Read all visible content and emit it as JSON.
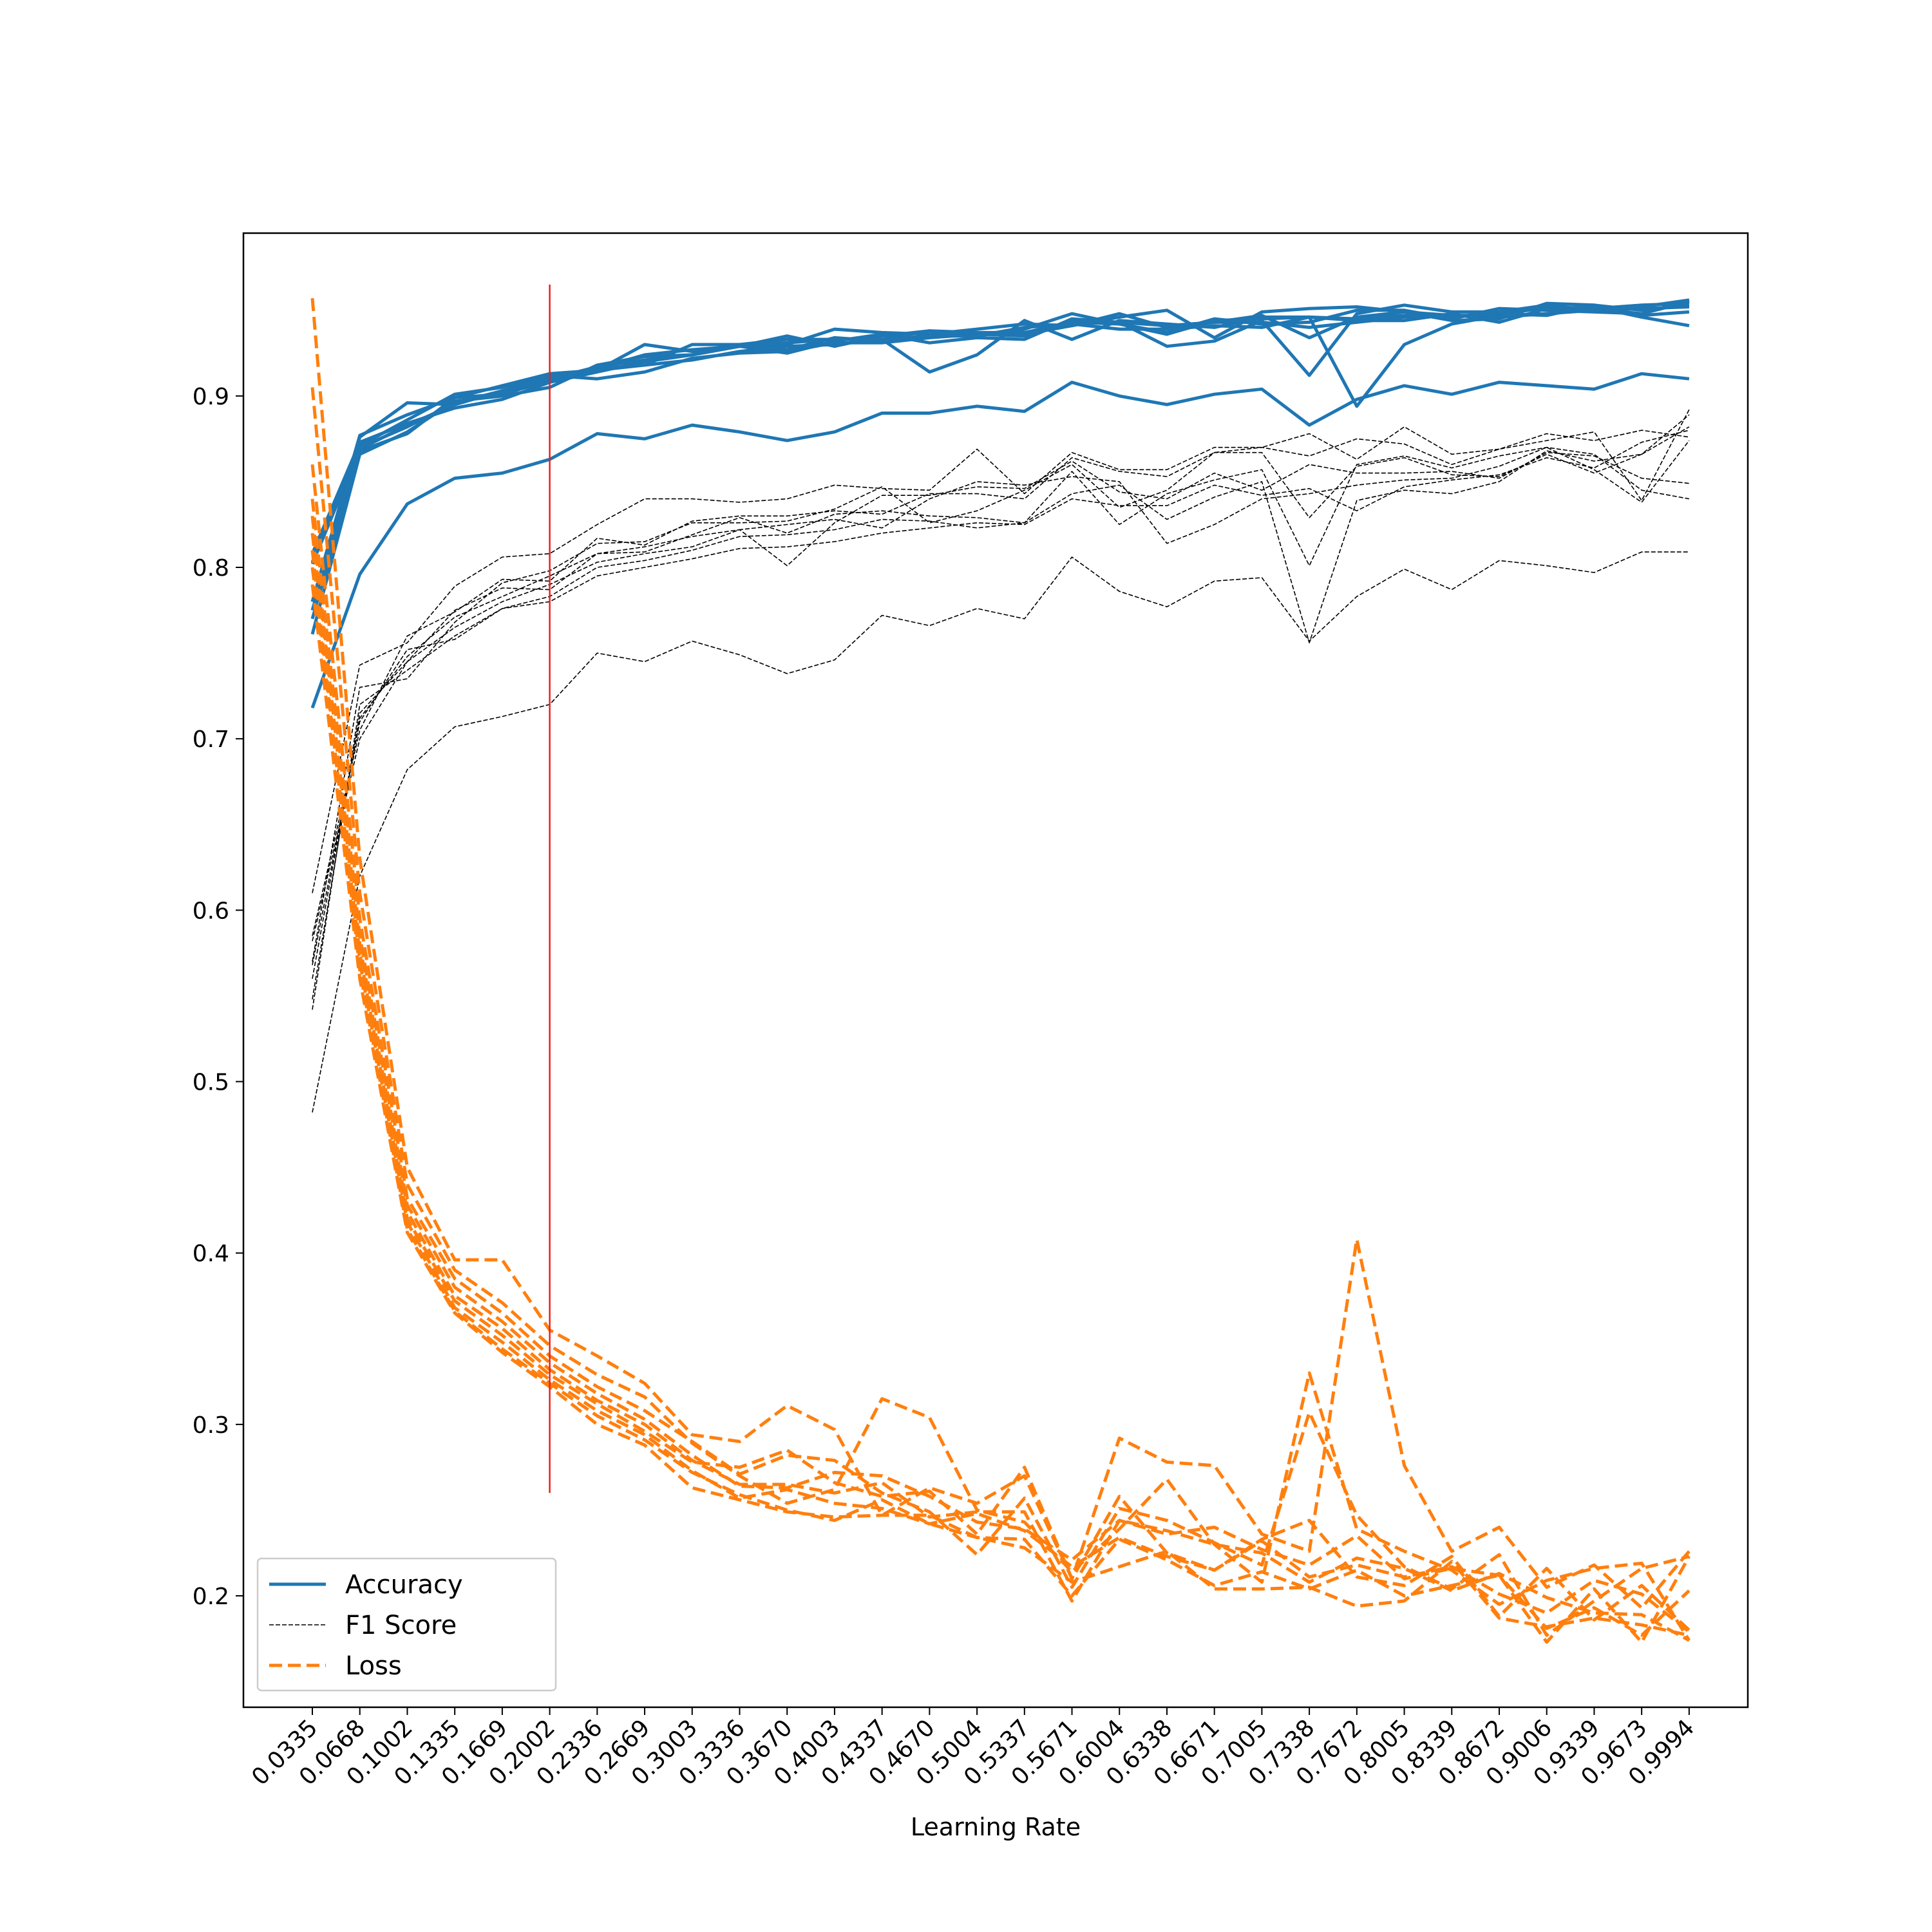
{
  "chart_data": {
    "type": "line",
    "title": "",
    "xlabel": "Learning Rate",
    "ylabel": "",
    "x": [
      0.0335,
      0.0668,
      0.1002,
      0.1335,
      0.1669,
      0.2002,
      0.2336,
      0.2669,
      0.3003,
      0.3336,
      0.367,
      0.4003,
      0.4337,
      0.467,
      0.5004,
      0.5337,
      0.5671,
      0.6004,
      0.6338,
      0.6671,
      0.7005,
      0.7338,
      0.7672,
      0.8005,
      0.8339,
      0.8672,
      0.9006,
      0.9339,
      0.9673,
      0.9994
    ],
    "x_tick_labels": [
      "0.0335",
      "0.0668",
      "0.1002",
      "0.1335",
      "0.1669",
      "0.2002",
      "0.2336",
      "0.2669",
      "0.3003",
      "0.3336",
      "0.3670",
      "0.4003",
      "0.4337",
      "0.4670",
      "0.5004",
      "0.5337",
      "0.5671",
      "0.6004",
      "0.6338",
      "0.6671",
      "0.7005",
      "0.7338",
      "0.7672",
      "0.8005",
      "0.8339",
      "0.8672",
      "0.9006",
      "0.9339",
      "0.9673",
      "0.9994"
    ],
    "y_ticks": [
      0.2,
      0.3,
      0.4,
      0.5,
      0.6,
      0.7,
      0.8,
      0.9
    ],
    "y_tick_labels": [
      "0.2",
      "0.3",
      "0.4",
      "0.5",
      "0.6",
      "0.7",
      "0.8",
      "0.9"
    ],
    "ylim": [
      0.135,
      0.995
    ],
    "grid": false,
    "legend": {
      "position": "lower-left",
      "entries": [
        "Accuracy",
        "F1 Score",
        "Loss"
      ]
    },
    "vertical_line": {
      "x": 0.2002,
      "y_range": [
        0.26,
        0.965
      ],
      "color": "#e8201d"
    },
    "colors": {
      "accuracy": "#1f77b4",
      "f1": "#000000",
      "loss": "#ff7f0e"
    },
    "groups": [
      {
        "name": "Accuracy",
        "style": "solid",
        "series": [
          [
            0.775,
            0.876,
            0.896,
            0.895,
            0.903,
            0.911,
            0.915,
            0.93,
            0.926,
            0.929,
            0.93,
            0.939,
            0.937,
            0.936,
            0.939,
            0.942,
            0.941,
            0.946,
            0.95,
            0.934,
            0.949,
            0.951,
            0.952,
            0.949,
            0.947,
            0.946,
            0.948,
            0.951,
            0.953,
            0.954
          ],
          [
            0.78,
            0.877,
            0.889,
            0.899,
            0.906,
            0.913,
            0.915,
            0.918,
            0.93,
            0.93,
            0.933,
            0.933,
            0.933,
            0.914,
            0.924,
            0.944,
            0.933,
            0.944,
            0.942,
            0.94,
            0.946,
            0.946,
            0.894,
            0.93,
            0.942,
            0.947,
            0.952,
            0.951,
            0.948,
            0.955
          ],
          [
            0.77,
            0.868,
            0.878,
            0.899,
            0.901,
            0.909,
            0.916,
            0.924,
            0.927,
            0.929,
            0.935,
            0.929,
            0.935,
            0.938,
            0.937,
            0.936,
            0.941,
            0.948,
            0.94,
            0.943,
            0.947,
            0.934,
            0.946,
            0.949,
            0.944,
            0.945,
            0.954,
            0.953,
            0.947,
            0.949
          ],
          [
            0.761,
            0.866,
            0.879,
            0.897,
            0.9,
            0.905,
            0.918,
            0.923,
            0.924,
            0.929,
            0.925,
            0.932,
            0.936,
            0.931,
            0.934,
            0.933,
            0.945,
            0.943,
            0.941,
            0.943,
            0.943,
            0.94,
            0.943,
            0.946,
            0.947,
            0.947,
            0.948,
            0.95,
            0.951,
            0.952
          ],
          [
            0.808,
            0.873,
            0.884,
            0.893,
            0.898,
            0.908,
            0.914,
            0.92,
            0.924,
            0.93,
            0.927,
            0.934,
            0.932,
            0.935,
            0.937,
            0.937,
            0.943,
            0.942,
            0.936,
            0.944,
            0.945,
            0.946,
            0.945,
            0.947,
            0.946,
            0.948,
            0.947,
            0.953,
            0.95,
            0.953
          ],
          [
            0.802,
            0.869,
            0.883,
            0.895,
            0.903,
            0.91,
            0.916,
            0.918,
            0.921,
            0.926,
            0.929,
            0.93,
            0.933,
            0.938,
            0.935,
            0.939,
            0.948,
            0.942,
            0.937,
            0.945,
            0.942,
            0.943,
            0.95,
            0.95,
            0.945,
            0.951,
            0.95,
            0.949,
            0.948,
            0.956
          ],
          [
            0.803,
            0.871,
            0.886,
            0.901,
            0.905,
            0.912,
            0.91,
            0.914,
            0.922,
            0.925,
            0.926,
            0.931,
            0.931,
            0.934,
            0.936,
            0.935,
            0.944,
            0.943,
            0.929,
            0.932,
            0.944,
            0.912,
            0.948,
            0.953,
            0.949,
            0.949,
            0.953,
            0.95,
            0.952,
            0.956
          ],
          [
            0.78,
            0.87,
            0.882,
            0.896,
            0.903,
            0.91,
            0.917,
            0.921,
            0.924,
            0.929,
            0.931,
            0.933,
            0.933,
            0.935,
            0.935,
            0.94,
            0.942,
            0.939,
            0.939,
            0.941,
            0.94,
            0.946,
            0.944,
            0.944,
            0.948,
            0.943,
            0.951,
            0.952,
            0.946,
            0.941
          ],
          [
            0.718,
            0.796,
            0.837,
            0.852,
            0.855,
            0.863,
            0.878,
            0.875,
            0.883,
            0.879,
            0.874,
            0.879,
            0.89,
            0.89,
            0.894,
            0.891,
            0.908,
            0.9,
            0.895,
            0.901,
            0.904,
            0.883,
            0.898,
            0.906,
            0.901,
            0.908,
            0.906,
            0.904,
            0.913,
            0.91
          ]
        ]
      },
      {
        "name": "F1 Score",
        "style": "thin-dashed",
        "series": [
          [
            0.61,
            0.743,
            0.756,
            0.789,
            0.806,
            0.808,
            0.825,
            0.84,
            0.84,
            0.838,
            0.84,
            0.848,
            0.846,
            0.845,
            0.869,
            0.843,
            0.867,
            0.857,
            0.857,
            0.87,
            0.87,
            0.878,
            0.863,
            0.882,
            0.866,
            0.869,
            0.878,
            0.874,
            0.88,
            0.876
          ],
          [
            0.585,
            0.705,
            0.76,
            0.774,
            0.793,
            0.792,
            0.817,
            0.813,
            0.827,
            0.83,
            0.83,
            0.833,
            0.831,
            0.843,
            0.843,
            0.84,
            0.864,
            0.856,
            0.853,
            0.867,
            0.87,
            0.865,
            0.875,
            0.872,
            0.86,
            0.869,
            0.874,
            0.879,
            0.839,
            0.892
          ],
          [
            0.57,
            0.73,
            0.735,
            0.768,
            0.791,
            0.798,
            0.814,
            0.815,
            0.826,
            0.826,
            0.827,
            0.834,
            0.847,
            0.826,
            0.833,
            0.845,
            0.86,
            0.835,
            0.845,
            0.867,
            0.867,
            0.829,
            0.859,
            0.864,
            0.854,
            0.853,
            0.866,
            0.855,
            0.866,
            0.889
          ],
          [
            0.582,
            0.7,
            0.745,
            0.775,
            0.788,
            0.787,
            0.808,
            0.812,
            0.818,
            0.822,
            0.801,
            0.826,
            0.842,
            0.842,
            0.847,
            0.846,
            0.862,
            0.844,
            0.84,
            0.855,
            0.845,
            0.86,
            0.855,
            0.855,
            0.856,
            0.852,
            0.867,
            0.865,
            0.852,
            0.849
          ],
          [
            0.56,
            0.712,
            0.748,
            0.771,
            0.783,
            0.795,
            0.808,
            0.809,
            0.819,
            0.829,
            0.82,
            0.831,
            0.833,
            0.83,
            0.829,
            0.826,
            0.856,
            0.825,
            0.843,
            0.851,
            0.857,
            0.801,
            0.86,
            0.865,
            0.858,
            0.865,
            0.87,
            0.866,
            0.845,
            0.84
          ],
          [
            0.548,
            0.715,
            0.745,
            0.765,
            0.78,
            0.79,
            0.803,
            0.808,
            0.812,
            0.822,
            0.825,
            0.828,
            0.823,
            0.84,
            0.85,
            0.848,
            0.853,
            0.85,
            0.814,
            0.825,
            0.84,
            0.843,
            0.848,
            0.851,
            0.852,
            0.859,
            0.87,
            0.857,
            0.838,
            0.874
          ],
          [
            0.542,
            0.72,
            0.74,
            0.76,
            0.776,
            0.783,
            0.8,
            0.804,
            0.81,
            0.818,
            0.819,
            0.822,
            0.828,
            0.827,
            0.823,
            0.826,
            0.843,
            0.848,
            0.828,
            0.841,
            0.85,
            0.756,
            0.839,
            0.845,
            0.843,
            0.85,
            0.868,
            0.862,
            0.866,
            0.882
          ],
          [
            0.568,
            0.71,
            0.752,
            0.758,
            0.776,
            0.78,
            0.795,
            0.8,
            0.805,
            0.811,
            0.812,
            0.815,
            0.82,
            0.823,
            0.826,
            0.825,
            0.84,
            0.836,
            0.836,
            0.848,
            0.842,
            0.846,
            0.833,
            0.847,
            0.851,
            0.854,
            0.864,
            0.858,
            0.873,
            0.88
          ],
          [
            0.482,
            0.62,
            0.682,
            0.707,
            0.713,
            0.72,
            0.75,
            0.745,
            0.757,
            0.749,
            0.738,
            0.746,
            0.772,
            0.766,
            0.776,
            0.77,
            0.806,
            0.786,
            0.777,
            0.792,
            0.794,
            0.757,
            0.783,
            0.799,
            0.787,
            0.804,
            0.801,
            0.797,
            0.809,
            0.809
          ]
        ]
      },
      {
        "name": "Loss",
        "style": "dashed",
        "series": [
          [
            0.957,
            0.63,
            0.45,
            0.396,
            0.396,
            0.355,
            0.34,
            0.324,
            0.294,
            0.29,
            0.311,
            0.297,
            0.247,
            0.263,
            0.254,
            0.27,
            0.21,
            0.292,
            0.278,
            0.276,
            0.236,
            0.226,
            0.408,
            0.276,
            0.226,
            0.24,
            0.205,
            0.218,
            0.193,
            0.226
          ],
          [
            0.905,
            0.61,
            0.44,
            0.39,
            0.371,
            0.346,
            0.329,
            0.316,
            0.289,
            0.27,
            0.254,
            0.262,
            0.315,
            0.304,
            0.25,
            0.243,
            0.214,
            0.239,
            0.268,
            0.23,
            0.208,
            0.33,
            0.239,
            0.226,
            0.215,
            0.195,
            0.209,
            0.216,
            0.219,
            0.174
          ],
          [
            0.86,
            0.595,
            0.432,
            0.385,
            0.365,
            0.34,
            0.322,
            0.308,
            0.29,
            0.271,
            0.282,
            0.279,
            0.26,
            0.249,
            0.224,
            0.257,
            0.205,
            0.251,
            0.244,
            0.231,
            0.218,
            0.307,
            0.247,
            0.217,
            0.204,
            0.224,
            0.177,
            0.197,
            0.216,
            0.223
          ],
          [
            0.84,
            0.585,
            0.428,
            0.38,
            0.36,
            0.336,
            0.318,
            0.303,
            0.282,
            0.264,
            0.263,
            0.272,
            0.27,
            0.258,
            0.243,
            0.239,
            0.221,
            0.244,
            0.236,
            0.24,
            0.227,
            0.218,
            0.235,
            0.21,
            0.216,
            0.212,
            0.181,
            0.193,
            0.177,
            0.203
          ],
          [
            0.82,
            0.58,
            0.424,
            0.375,
            0.356,
            0.332,
            0.314,
            0.3,
            0.279,
            0.265,
            0.265,
            0.26,
            0.266,
            0.246,
            0.249,
            0.249,
            0.197,
            0.244,
            0.238,
            0.23,
            0.225,
            0.208,
            0.222,
            0.216,
            0.203,
            0.213,
            0.199,
            0.19,
            0.189,
            0.174
          ],
          [
            0.8,
            0.575,
            0.42,
            0.372,
            0.352,
            0.329,
            0.312,
            0.296,
            0.278,
            0.275,
            0.285,
            0.266,
            0.258,
            0.261,
            0.236,
            0.275,
            0.21,
            0.258,
            0.225,
            0.215,
            0.233,
            0.244,
            0.211,
            0.206,
            0.223,
            0.188,
            0.216,
            0.186,
            0.206,
            0.18
          ],
          [
            0.83,
            0.57,
            0.418,
            0.368,
            0.348,
            0.326,
            0.308,
            0.294,
            0.273,
            0.257,
            0.262,
            0.254,
            0.251,
            0.242,
            0.248,
            0.238,
            0.217,
            0.234,
            0.223,
            0.215,
            0.232,
            0.211,
            0.218,
            0.211,
            0.217,
            0.201,
            0.19,
            0.209,
            0.201,
            0.179
          ],
          [
            0.81,
            0.565,
            0.414,
            0.366,
            0.344,
            0.324,
            0.305,
            0.291,
            0.272,
            0.259,
            0.25,
            0.244,
            0.256,
            0.242,
            0.234,
            0.233,
            0.2,
            0.233,
            0.221,
            0.206,
            0.214,
            0.204,
            0.215,
            0.2,
            0.206,
            0.212,
            0.173,
            0.204,
            0.173,
            0.223
          ],
          [
            0.79,
            0.56,
            0.412,
            0.365,
            0.342,
            0.322,
            0.3,
            0.288,
            0.263,
            0.256,
            0.249,
            0.246,
            0.247,
            0.247,
            0.234,
            0.228,
            0.208,
            0.217,
            0.226,
            0.204,
            0.204,
            0.205,
            0.194,
            0.197,
            0.22,
            0.187,
            0.182,
            0.187,
            0.183,
            0.177
          ]
        ]
      }
    ]
  }
}
